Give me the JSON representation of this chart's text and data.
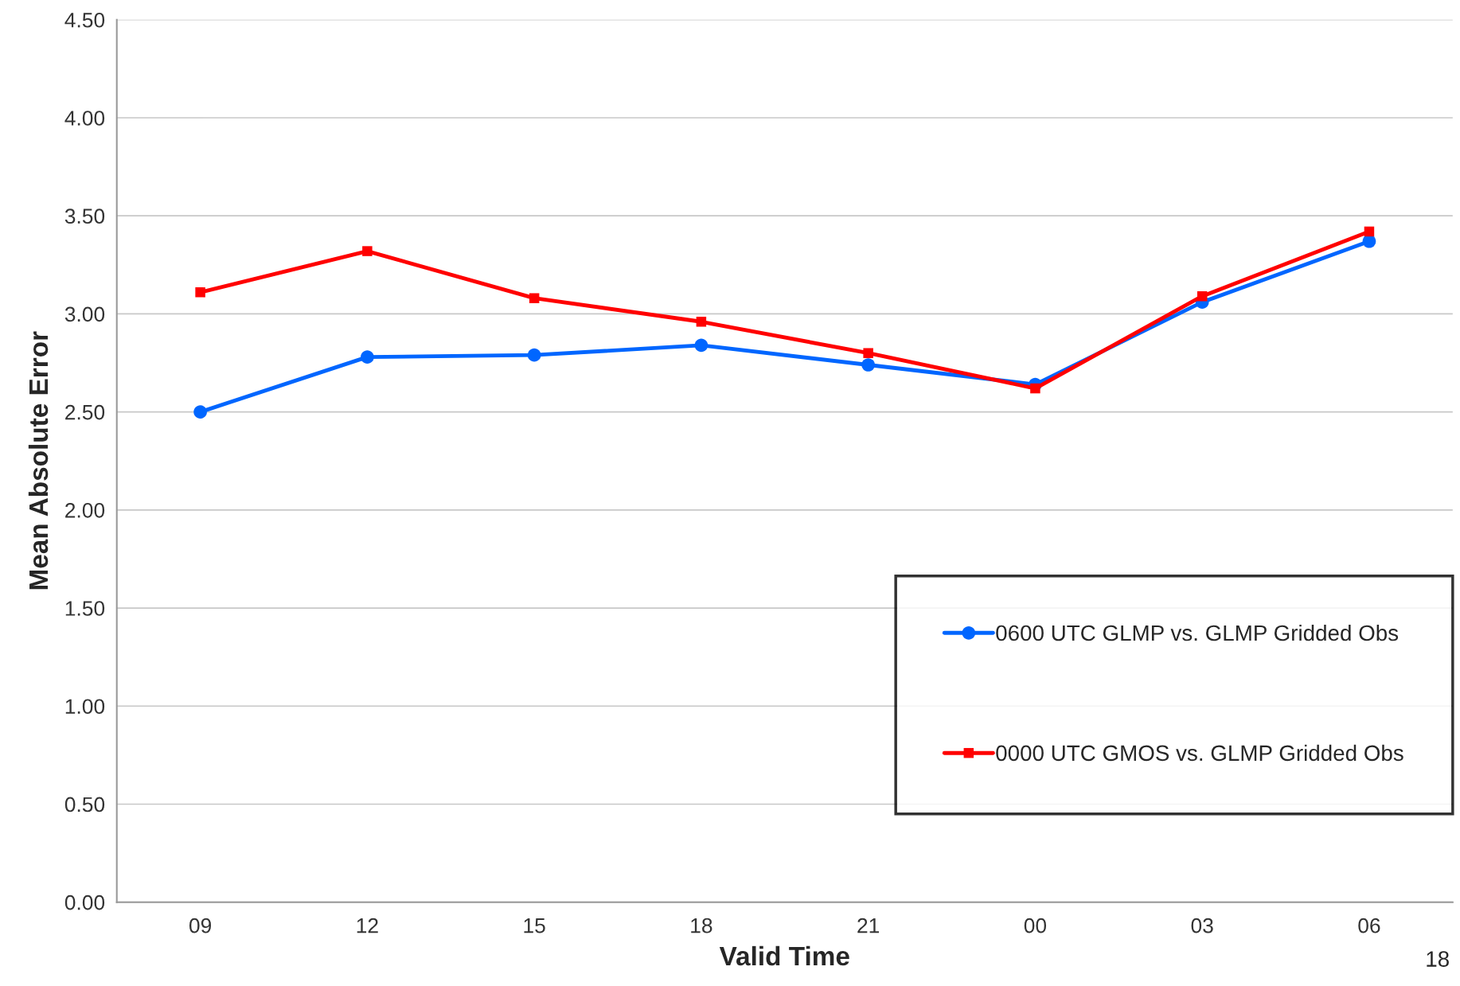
{
  "chart_data": {
    "type": "line",
    "xlabel": "Valid Time",
    "ylabel": "Mean Absolute Error",
    "categories": [
      "09",
      "12",
      "15",
      "18",
      "21",
      "00",
      "03",
      "06"
    ],
    "series": [
      {
        "name": "0600 UTC GLMP vs. GLMP Gridded Obs",
        "color": "#0066ff",
        "marker": "circle",
        "values": [
          2.5,
          2.78,
          2.79,
          2.84,
          2.74,
          2.64,
          3.06,
          3.37
        ]
      },
      {
        "name": "0000 UTC GMOS vs. GLMP Gridded Obs",
        "color": "#ff0000",
        "marker": "square",
        "values": [
          3.11,
          3.32,
          3.08,
          2.96,
          2.8,
          2.62,
          3.09,
          3.42
        ]
      }
    ],
    "ylim": [
      0,
      4.5
    ],
    "yticks": [
      {
        "value": 0,
        "label": "0.00"
      },
      {
        "value": 0.5,
        "label": "0.50"
      },
      {
        "value": 1,
        "label": "1.00"
      },
      {
        "value": 1.5,
        "label": "1.50"
      },
      {
        "value": 2,
        "label": "2.00"
      },
      {
        "value": 2.5,
        "label": "2.50"
      },
      {
        "value": 3,
        "label": "3.00"
      },
      {
        "value": 3.5,
        "label": "3.50"
      },
      {
        "value": 4,
        "label": "4.00"
      },
      {
        "value": 4.5,
        "label": "4.50"
      }
    ],
    "grid": "y",
    "legend": "lower right",
    "line_style": "solid",
    "annotations": [
      "18"
    ]
  }
}
